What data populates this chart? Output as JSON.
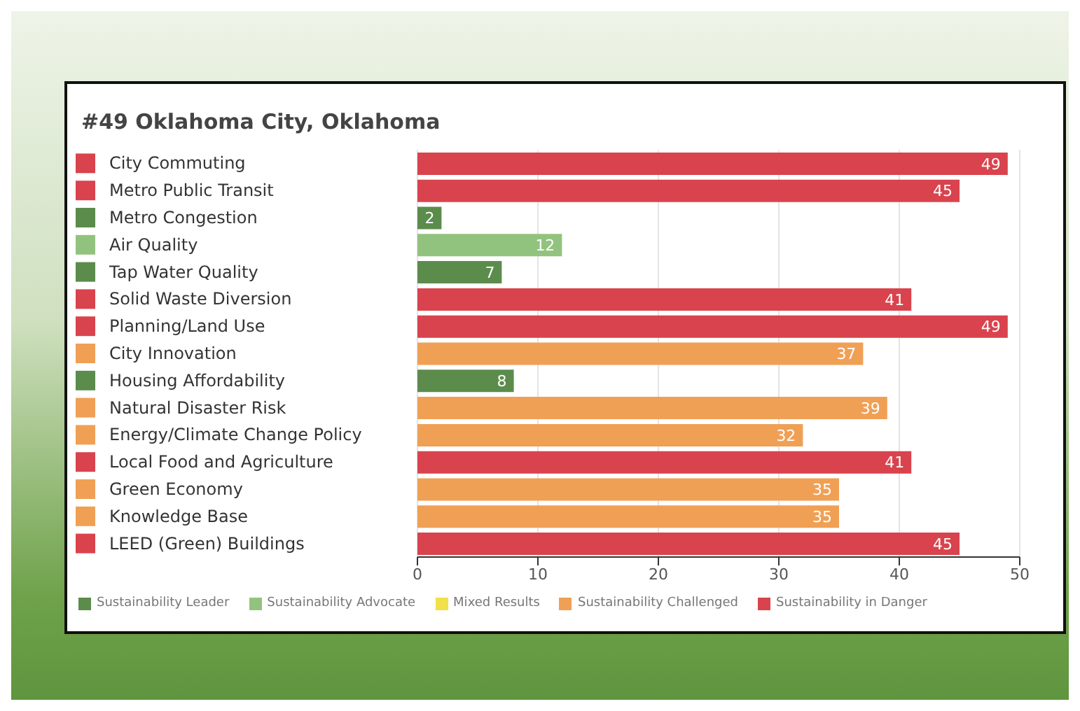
{
  "chart_data": {
    "type": "bar",
    "orientation": "horizontal",
    "stacked": true,
    "title": "#49 Oklahoma City, Oklahoma",
    "categories": [
      "City Commuting",
      "Metro Public Transit",
      "Metro Congestion",
      "Air Quality",
      "Tap Water Quality",
      "Solid Waste Diversion",
      "Planning/Land Use",
      "City Innovation",
      "Housing Affordability",
      "Natural Disaster Risk",
      "Energy/Climate Change Policy",
      "Local Food and Agriculture",
      "Green Economy",
      "Knowledge Base",
      "LEED (Green) Buildings"
    ],
    "series": [
      {
        "name": "Sustainability Leader",
        "color": "#5b8c4c",
        "values": [
          null,
          null,
          2,
          null,
          7,
          null,
          null,
          null,
          8,
          null,
          null,
          null,
          null,
          null,
          null
        ]
      },
      {
        "name": "Sustainability Advocate",
        "color": "#92c37e",
        "values": [
          null,
          null,
          null,
          12,
          null,
          null,
          null,
          null,
          null,
          null,
          null,
          null,
          null,
          null,
          null
        ]
      },
      {
        "name": "Mixed Results",
        "color": "#f0e04a",
        "values": [
          null,
          null,
          null,
          null,
          null,
          null,
          null,
          null,
          null,
          null,
          null,
          null,
          null,
          null,
          null
        ]
      },
      {
        "name": "Sustainability Challenged",
        "color": "#f0a055",
        "values": [
          null,
          null,
          null,
          null,
          null,
          null,
          null,
          37,
          null,
          39,
          32,
          null,
          35,
          35,
          null
        ]
      },
      {
        "name": "Sustainability in Danger",
        "color": "#d9434d",
        "values": [
          49,
          45,
          null,
          null,
          null,
          41,
          49,
          null,
          null,
          null,
          null,
          41,
          null,
          null,
          45
        ]
      }
    ],
    "xlim": [
      0,
      50
    ],
    "xticks": [
      0,
      10,
      20,
      30,
      40,
      50
    ],
    "grid": "x",
    "legend": "bottom",
    "data_labels": true
  }
}
